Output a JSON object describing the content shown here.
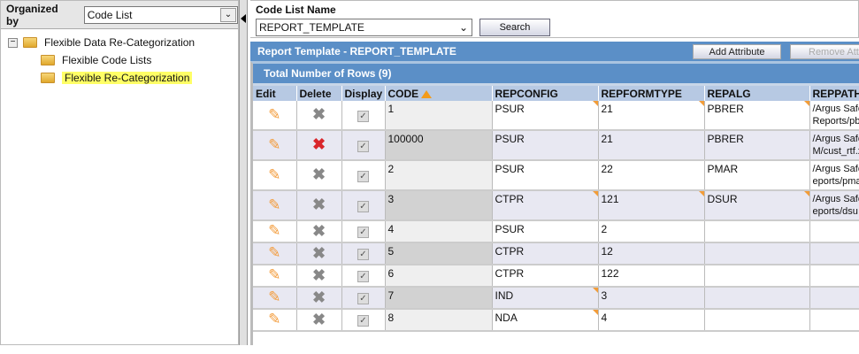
{
  "left": {
    "organized_by_label": "Organized by",
    "organized_by_value": "Code List",
    "tree": [
      {
        "label": "Flexible Data Re-Categorization",
        "expanded": true
      },
      {
        "label": "Flexible Code Lists"
      },
      {
        "label": "Flexible Re-Categorization",
        "selected": true
      }
    ]
  },
  "search": {
    "label": "Code List Name",
    "value": "REPORT_TEMPLATE",
    "button": "Search"
  },
  "panel": {
    "title": "Report Template - REPORT_TEMPLATE",
    "add_attribute": "Add Attribute",
    "remove_attribute": "Remove Attribute",
    "total_rows": "Total Number of Rows (9)"
  },
  "table": {
    "columns": [
      "Edit",
      "Delete",
      "Display",
      "CODE",
      "REPCONFIG",
      "REPFORMTYPE",
      "REPALG",
      "REPPATH"
    ],
    "rows": [
      {
        "code": "1",
        "repconfig": "PSUR",
        "repformtype": "21",
        "repalg": "PBRER",
        "reppath": "/Argus Safe Reports/pb",
        "delete_active": false,
        "flags": [
          4,
          5,
          6
        ]
      },
      {
        "code": "100000",
        "repconfig": "PSUR",
        "repformtype": "21",
        "repalg": "PBRER",
        "reppath": "/Argus Safe M/cust_rtf.x",
        "delete_active": true,
        "flags": []
      },
      {
        "code": "2",
        "repconfig": "PSUR",
        "repformtype": "22",
        "repalg": "PMAR",
        "reppath": "/Argus Safe eports/pma",
        "delete_active": false,
        "flags": []
      },
      {
        "code": "3",
        "repconfig": "CTPR",
        "repformtype": "121",
        "repalg": "DSUR",
        "reppath": "/Argus Safe eports/dsu",
        "delete_active": false,
        "flags": [
          4,
          5,
          6
        ]
      },
      {
        "code": "4",
        "repconfig": "PSUR",
        "repformtype": "2",
        "repalg": "",
        "reppath": "",
        "delete_active": false,
        "flags": []
      },
      {
        "code": "5",
        "repconfig": "CTPR",
        "repformtype": "12",
        "repalg": "",
        "reppath": "",
        "delete_active": false,
        "flags": []
      },
      {
        "code": "6",
        "repconfig": "CTPR",
        "repformtype": "122",
        "repalg": "",
        "reppath": "",
        "delete_active": false,
        "flags": []
      },
      {
        "code": "7",
        "repconfig": "IND",
        "repformtype": "3",
        "repalg": "",
        "reppath": "",
        "delete_active": false,
        "flags": [
          4
        ]
      },
      {
        "code": "8",
        "repconfig": "NDA",
        "repformtype": "4",
        "repalg": "",
        "reppath": "",
        "delete_active": false,
        "flags": [
          4
        ]
      }
    ]
  },
  "colors": {
    "header_blue": "#5b8fc7",
    "column_header": "#b7c9e3",
    "edit_icon": "#f39b3a",
    "delete_active": "#d9262b",
    "highlight": "#ffff66"
  }
}
